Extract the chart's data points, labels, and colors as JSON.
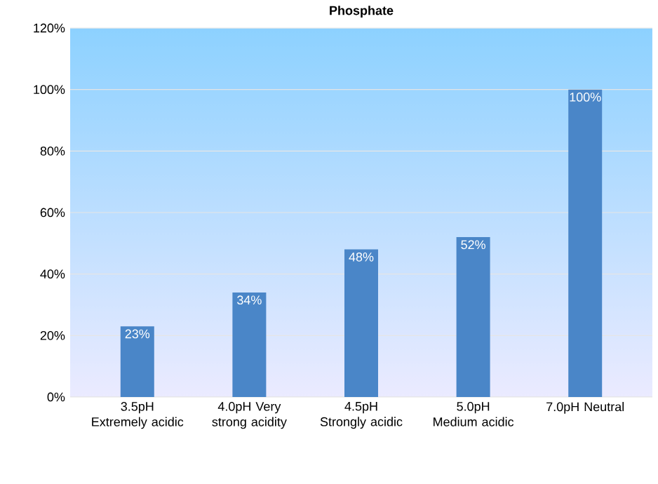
{
  "chart_data": {
    "type": "bar",
    "title": "Phosphate",
    "categories": [
      "3.5pH Extremely acidic",
      "4.0pH Very strong acidity",
      "4.5pH Strongly acidic",
      "5.0pH Medium acidic",
      "7.0pH Neutral"
    ],
    "values": [
      23,
      34,
      48,
      52,
      100
    ],
    "value_labels": [
      "23%",
      "34%",
      "48%",
      "52%",
      "100%"
    ],
    "color": "#4a86c8",
    "ylim": [
      0,
      120
    ],
    "yticks": [
      {
        "value": 0,
        "label": "0%"
      },
      {
        "value": 20,
        "label": "20%"
      },
      {
        "value": 40,
        "label": "40%"
      },
      {
        "value": 60,
        "label": "60%"
      },
      {
        "value": 80,
        "label": "80%"
      },
      {
        "value": 100,
        "label": "100%"
      },
      {
        "value": 120,
        "label": "120%"
      }
    ],
    "grid": "y"
  }
}
